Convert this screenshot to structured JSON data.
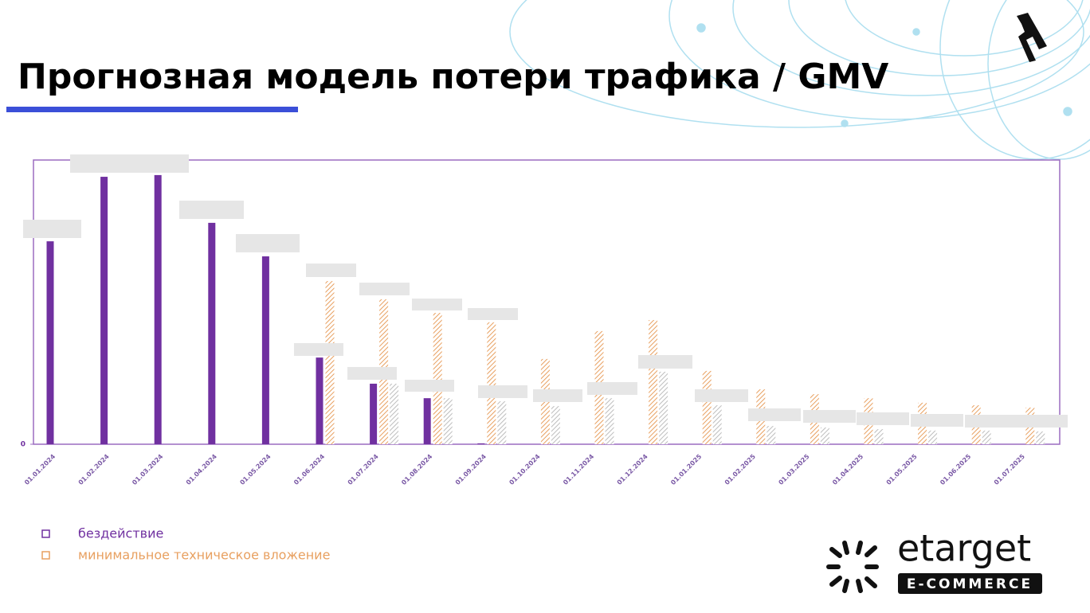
{
  "chart_data": {
    "type": "bar",
    "title": "Прогнозная модель потери трафика / GMV",
    "categories": [
      "01.01.2024",
      "01.02.2024",
      "01.03.2024",
      "01.04.2024",
      "01.05.2024",
      "01.06.2024",
      "01.07.2024",
      "01.08.2024",
      "01.09.2024",
      "01.10.2024",
      "01.11.2024",
      "01.12.2024",
      "01.01.2025",
      "01.02.2025",
      "01.03.2025",
      "01.04.2025",
      "01.05.2025",
      "01.06.2025",
      "01.07.2025"
    ],
    "series": [
      {
        "name": "бездействие",
        "color": "#7030a0",
        "hatch": false,
        "values": [
          71.4,
          94.1,
          94.7,
          77.9,
          66.1,
          30.5,
          21.3,
          16.2,
          0.3,
          null,
          null,
          null,
          null,
          null,
          null,
          null,
          null,
          null,
          null
        ]
      },
      {
        "name": "минимальное техническое вложение",
        "color": "#e8a060",
        "hatch": true,
        "values": [
          null,
          null,
          null,
          null,
          null,
          57.4,
          51,
          46.2,
          42.9,
          30,
          39.8,
          43.7,
          25.8,
          19.3,
          17.6,
          16.2,
          14.6,
          13.7,
          12.9
        ]
      },
      {
        "color": "#bdbdbd",
        "hatch": true,
        "values": [
          null,
          null,
          null,
          null,
          null,
          null,
          21.3,
          16.2,
          15.1,
          13.4,
          16.2,
          25.5,
          13.7,
          6.4,
          5.9,
          5.3,
          4.8,
          4.8,
          4.5
        ]
      }
    ],
    "ylim": [
      0,
      100
    ],
    "yticks": [
      0
    ]
  },
  "brand": {
    "name": "etarget",
    "tagline": "E-COMMERCE"
  }
}
